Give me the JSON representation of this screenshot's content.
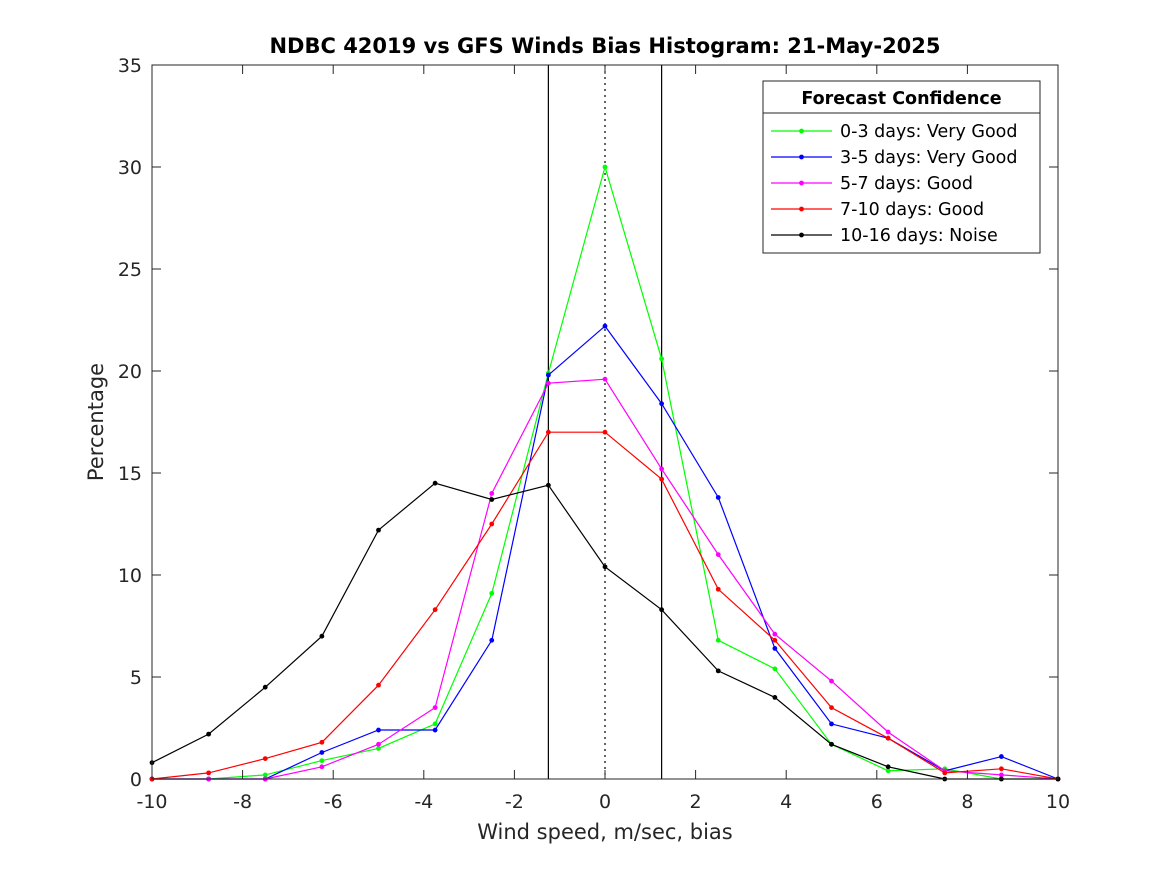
{
  "chart_data": {
    "type": "line",
    "title": "NDBC 42019 vs GFS Winds Bias Histogram: 21-May-2025",
    "xlabel": "Wind speed, m/sec, bias",
    "ylabel": "Percentage",
    "xlim": [
      -10,
      10
    ],
    "ylim": [
      0,
      35
    ],
    "xticks": [
      -10,
      -8,
      -6,
      -4,
      -2,
      0,
      2,
      4,
      6,
      8,
      10
    ],
    "yticks": [
      0,
      5,
      10,
      15,
      20,
      25,
      30,
      35
    ],
    "grid": false,
    "reference_lines": [
      {
        "x": -1.25,
        "style": "solid",
        "color": "#000000"
      },
      {
        "x": 0,
        "style": "dotted",
        "color": "#000000"
      },
      {
        "x": 1.25,
        "style": "solid",
        "color": "#000000"
      }
    ],
    "x": [
      -10,
      -8.75,
      -7.5,
      -6.25,
      -5,
      -3.75,
      -2.5,
      -1.25,
      0,
      1.25,
      2.5,
      3.75,
      5,
      6.25,
      7.5,
      8.75,
      10
    ],
    "legend": {
      "title": "Forecast Confidence",
      "placement": "top-right"
    },
    "series": [
      {
        "name": "0-3 days: Very Good",
        "color": "#00ff00",
        "values": [
          0,
          0,
          0.2,
          0.9,
          1.5,
          2.7,
          9.1,
          19.9,
          30.0,
          20.6,
          6.8,
          5.4,
          1.7,
          0.4,
          0.5,
          0,
          0
        ]
      },
      {
        "name": "3-5 days: Very Good",
        "color": "#0000ff",
        "values": [
          0,
          0,
          0,
          1.3,
          2.4,
          2.4,
          6.8,
          19.8,
          22.2,
          18.4,
          13.8,
          6.4,
          2.7,
          2.0,
          0.4,
          1.1,
          0
        ]
      },
      {
        "name": "5-7 days: Good",
        "color": "#ff00ff",
        "values": [
          0,
          0,
          0,
          0.6,
          1.7,
          3.5,
          14.0,
          19.4,
          19.6,
          15.2,
          11.0,
          7.1,
          4.8,
          2.3,
          0.4,
          0.2,
          0
        ]
      },
      {
        "name": "7-10 days: Good",
        "color": "#ff0000",
        "values": [
          0,
          0.3,
          1.0,
          1.8,
          4.6,
          8.3,
          12.5,
          17.0,
          17.0,
          14.7,
          9.3,
          6.8,
          3.5,
          2.0,
          0.3,
          0.5,
          0
        ]
      },
      {
        "name": "10-16 days: Noise",
        "color": "#000000",
        "values": [
          0.8,
          2.2,
          4.5,
          7.0,
          12.2,
          14.5,
          13.7,
          14.4,
          10.4,
          8.3,
          5.3,
          4.0,
          1.7,
          0.6,
          0,
          0,
          0
        ]
      }
    ]
  }
}
